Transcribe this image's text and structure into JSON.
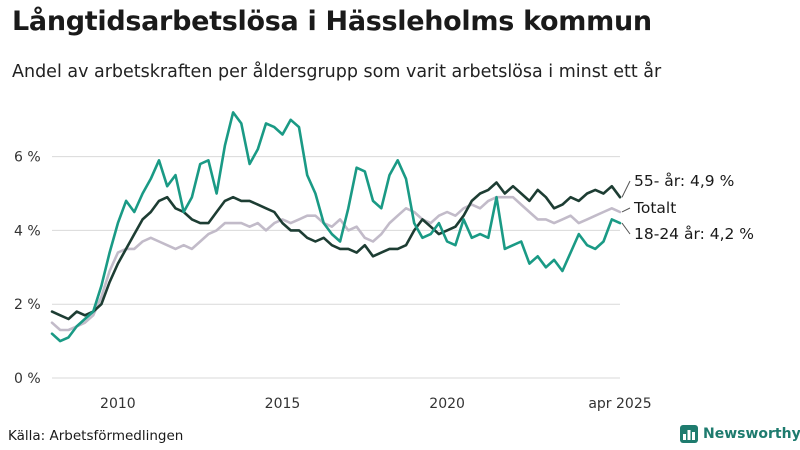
{
  "title": "Långtidsarbetslösa i Hässleholms kommun",
  "subtitle": "Andel av arbetskraften per åldersgrupp som varit arbetslösa i minst ett år",
  "source": "Källa: Arbetsförmedlingen",
  "brand": "Newsworthy",
  "colors": {
    "young": "#1a9a85",
    "old": "#1d3d33",
    "total": "#c2bbc9",
    "grid": "#d9d9d9",
    "brand": "#1e7b6e"
  },
  "chart_data": {
    "type": "line",
    "x_unit": "year",
    "xlim": [
      2008.0,
      2025.25
    ],
    "ylim": [
      0,
      7.4
    ],
    "y_ticks": [
      0,
      2,
      4,
      6
    ],
    "y_tick_labels": [
      "0 %",
      "2 %",
      "4 %",
      "6 %"
    ],
    "x_ticks": [
      2010,
      2015,
      2020,
      2025.25
    ],
    "x_tick_labels": [
      "2010",
      "2015",
      "2020",
      "apr 2025"
    ],
    "grid": true,
    "series": [
      {
        "name": "Totalt",
        "label": "Totalt",
        "color_key": "total",
        "x": [
          2008.0,
          2008.25,
          2008.5,
          2008.75,
          2009.0,
          2009.25,
          2009.5,
          2009.75,
          2010.0,
          2010.25,
          2010.5,
          2010.75,
          2011.0,
          2011.25,
          2011.5,
          2011.75,
          2012.0,
          2012.25,
          2012.5,
          2012.75,
          2013.0,
          2013.25,
          2013.5,
          2013.75,
          2014.0,
          2014.25,
          2014.5,
          2014.75,
          2015.0,
          2015.25,
          2015.5,
          2015.75,
          2016.0,
          2016.25,
          2016.5,
          2016.75,
          2017.0,
          2017.25,
          2017.5,
          2017.75,
          2018.0,
          2018.25,
          2018.5,
          2018.75,
          2019.0,
          2019.25,
          2019.5,
          2019.75,
          2020.0,
          2020.25,
          2020.5,
          2020.75,
          2021.0,
          2021.25,
          2021.5,
          2021.75,
          2022.0,
          2022.25,
          2022.5,
          2022.75,
          2023.0,
          2023.25,
          2023.5,
          2023.75,
          2024.0,
          2024.25,
          2024.5,
          2024.75,
          2025.0,
          2025.25
        ],
        "y": [
          1.5,
          1.3,
          1.3,
          1.4,
          1.5,
          1.7,
          2.2,
          2.9,
          3.4,
          3.5,
          3.5,
          3.7,
          3.8,
          3.7,
          3.6,
          3.5,
          3.6,
          3.5,
          3.7,
          3.9,
          4.0,
          4.2,
          4.2,
          4.2,
          4.1,
          4.2,
          4.0,
          4.2,
          4.3,
          4.2,
          4.3,
          4.4,
          4.4,
          4.2,
          4.1,
          4.3,
          4.0,
          4.1,
          3.8,
          3.7,
          3.9,
          4.2,
          4.4,
          4.6,
          4.5,
          4.3,
          4.2,
          4.4,
          4.5,
          4.4,
          4.6,
          4.7,
          4.6,
          4.8,
          4.9,
          4.9,
          4.9,
          4.7,
          4.5,
          4.3,
          4.3,
          4.2,
          4.3,
          4.4,
          4.2,
          4.3,
          4.4,
          4.5,
          4.6,
          4.5
        ]
      },
      {
        "name": "55- år",
        "label": "55- år: 4,9 %",
        "color_key": "old",
        "x": [
          2008.0,
          2008.25,
          2008.5,
          2008.75,
          2009.0,
          2009.25,
          2009.5,
          2009.75,
          2010.0,
          2010.25,
          2010.5,
          2010.75,
          2011.0,
          2011.25,
          2011.5,
          2011.75,
          2012.0,
          2012.25,
          2012.5,
          2012.75,
          2013.0,
          2013.25,
          2013.5,
          2013.75,
          2014.0,
          2014.25,
          2014.5,
          2014.75,
          2015.0,
          2015.25,
          2015.5,
          2015.75,
          2016.0,
          2016.25,
          2016.5,
          2016.75,
          2017.0,
          2017.25,
          2017.5,
          2017.75,
          2018.0,
          2018.25,
          2018.5,
          2018.75,
          2019.0,
          2019.25,
          2019.5,
          2019.75,
          2020.0,
          2020.25,
          2020.5,
          2020.75,
          2021.0,
          2021.25,
          2021.5,
          2021.75,
          2022.0,
          2022.25,
          2022.5,
          2022.75,
          2023.0,
          2023.25,
          2023.5,
          2023.75,
          2024.0,
          2024.25,
          2024.5,
          2024.75,
          2025.0,
          2025.25
        ],
        "y": [
          1.8,
          1.7,
          1.6,
          1.8,
          1.7,
          1.8,
          2.0,
          2.6,
          3.1,
          3.5,
          3.9,
          4.3,
          4.5,
          4.8,
          4.9,
          4.6,
          4.5,
          4.3,
          4.2,
          4.2,
          4.5,
          4.8,
          4.9,
          4.8,
          4.8,
          4.7,
          4.6,
          4.5,
          4.2,
          4.0,
          4.0,
          3.8,
          3.7,
          3.8,
          3.6,
          3.5,
          3.5,
          3.4,
          3.6,
          3.3,
          3.4,
          3.5,
          3.5,
          3.6,
          4.0,
          4.3,
          4.1,
          3.9,
          4.0,
          4.1,
          4.4,
          4.8,
          5.0,
          5.1,
          5.3,
          5.0,
          5.2,
          5.0,
          4.8,
          5.1,
          4.9,
          4.6,
          4.7,
          4.9,
          4.8,
          5.0,
          5.1,
          5.0,
          5.2,
          4.9
        ]
      },
      {
        "name": "18-24 år",
        "label": "18-24 år: 4,2 %",
        "color_key": "young",
        "x": [
          2008.0,
          2008.25,
          2008.5,
          2008.75,
          2009.0,
          2009.25,
          2009.5,
          2009.75,
          2010.0,
          2010.25,
          2010.5,
          2010.75,
          2011.0,
          2011.25,
          2011.5,
          2011.75,
          2012.0,
          2012.25,
          2012.5,
          2012.75,
          2013.0,
          2013.25,
          2013.5,
          2013.75,
          2014.0,
          2014.25,
          2014.5,
          2014.75,
          2015.0,
          2015.25,
          2015.5,
          2015.75,
          2016.0,
          2016.25,
          2016.5,
          2016.75,
          2017.0,
          2017.25,
          2017.5,
          2017.75,
          2018.0,
          2018.25,
          2018.5,
          2018.75,
          2019.0,
          2019.25,
          2019.5,
          2019.75,
          2020.0,
          2020.25,
          2020.5,
          2020.75,
          2021.0,
          2021.25,
          2021.5,
          2021.75,
          2022.0,
          2022.25,
          2022.5,
          2022.75,
          2023.0,
          2023.25,
          2023.5,
          2023.75,
          2024.0,
          2024.25,
          2024.5,
          2024.75,
          2025.0,
          2025.25
        ],
        "y": [
          1.2,
          1.0,
          1.1,
          1.4,
          1.6,
          1.8,
          2.5,
          3.4,
          4.2,
          4.8,
          4.5,
          5.0,
          5.4,
          5.9,
          5.2,
          5.5,
          4.5,
          4.9,
          5.8,
          5.9,
          5.0,
          6.3,
          7.2,
          6.9,
          5.8,
          6.2,
          6.9,
          6.8,
          6.6,
          7.0,
          6.8,
          5.5,
          5.0,
          4.2,
          3.9,
          3.7,
          4.6,
          5.7,
          5.6,
          4.8,
          4.6,
          5.5,
          5.9,
          5.4,
          4.2,
          3.8,
          3.9,
          4.2,
          3.7,
          3.6,
          4.3,
          3.8,
          3.9,
          3.8,
          4.9,
          3.5,
          3.6,
          3.7,
          3.1,
          3.3,
          3.0,
          3.2,
          2.9,
          3.4,
          3.9,
          3.6,
          3.5,
          3.7,
          4.3,
          4.2
        ]
      }
    ]
  }
}
